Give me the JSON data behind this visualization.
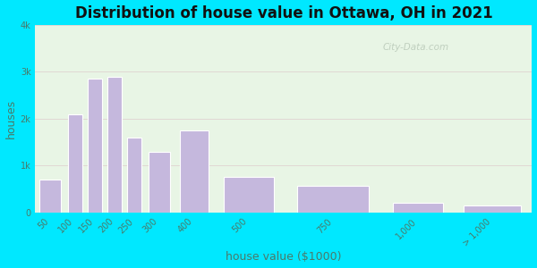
{
  "title": "Distribution of house value in Ottawa, OH in 2021",
  "xlabel": "house value ($1000)",
  "ylabel": "houses",
  "categories": [
    "50",
    "100",
    "150",
    "200",
    "250",
    "300",
    "400",
    "500",
    "750",
    "1,000",
    "> 1,000"
  ],
  "values": [
    700,
    2100,
    2850,
    2900,
    1600,
    1300,
    1750,
    750,
    575,
    200,
    150
  ],
  "bin_edges": [
    0,
    75,
    125,
    175,
    225,
    275,
    350,
    450,
    625,
    875,
    1050,
    1250
  ],
  "bar_color": "#c5b8dd",
  "bar_edge_color": "#ffffff",
  "bg_outer": "#00e8ff",
  "bg_plot": "#e8f5e5",
  "ytick_labels": [
    "0",
    "1k",
    "2k",
    "3k",
    "4k"
  ],
  "ytick_values": [
    0,
    1000,
    2000,
    3000,
    4000
  ],
  "ylim": [
    0,
    4000
  ],
  "title_fontsize": 12,
  "axis_label_fontsize": 9,
  "tick_fontsize": 7,
  "watermark_text": "City-Data.com"
}
